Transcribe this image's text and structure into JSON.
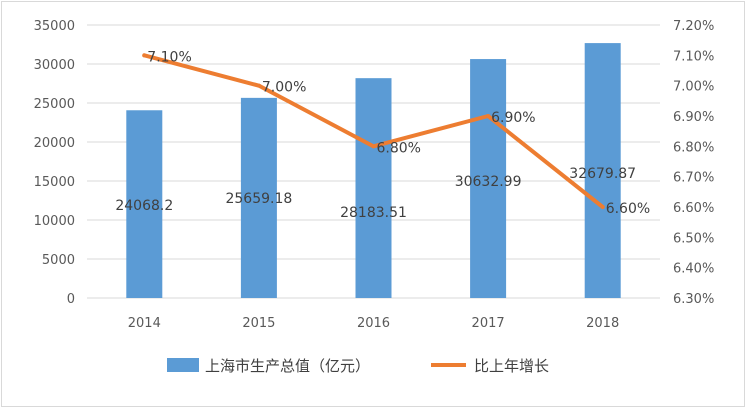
{
  "chart_data": {
    "type": "bar",
    "categories": [
      "2014",
      "2015",
      "2016",
      "2017",
      "2018"
    ],
    "series": [
      {
        "name": "上海市生产总值（亿元）",
        "type": "bar",
        "axis": "left",
        "color": "#5b9bd5",
        "values": [
          24068.2,
          25659.18,
          28183.51,
          30632.99,
          32679.87
        ],
        "labels": [
          "24068.2",
          "25659.18",
          "28183.51",
          "30632.99",
          "32679.87"
        ]
      },
      {
        "name": "比上年增长",
        "type": "line",
        "axis": "right",
        "color": "#ed7d31",
        "values": [
          7.1,
          7.0,
          6.8,
          6.9,
          6.6
        ],
        "labels": [
          "7.10%",
          "7.00%",
          "6.80%",
          "6.90%",
          "6.60%"
        ]
      }
    ],
    "y_left": {
      "ylim": [
        0,
        35000
      ],
      "ticks": [
        "0",
        "5000",
        "10000",
        "15000",
        "20000",
        "25000",
        "30000",
        "35000"
      ]
    },
    "y_right": {
      "ylim": [
        6.3,
        7.2
      ],
      "ticks": [
        "6.30%",
        "6.40%",
        "6.50%",
        "6.60%",
        "6.70%",
        "6.80%",
        "6.90%",
        "7.00%",
        "7.10%",
        "7.20%"
      ]
    },
    "grid": true,
    "legend_position": "bottom"
  }
}
